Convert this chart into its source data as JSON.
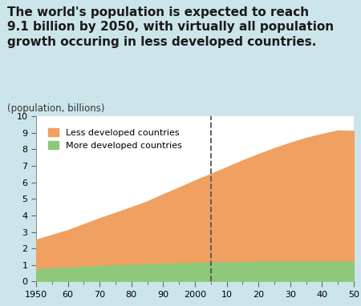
{
  "title": "The world's population is expected to reach\n9.1 billion by 2050, with virtually all population\ngrowth occuring in less developed countries.",
  "ylabel": "(population, billions)",
  "background_color": "#cce5ea",
  "plot_bg_color": "#ffffff",
  "less_dev_color": "#f0a060",
  "more_dev_color": "#8ec87a",
  "dashed_line_year": 2005,
  "years": [
    1950,
    1955,
    1960,
    1965,
    1970,
    1975,
    1980,
    1985,
    1990,
    1995,
    2000,
    2005,
    2010,
    2015,
    2020,
    2025,
    2030,
    2035,
    2040,
    2045,
    2050
  ],
  "less_dev": [
    1.72,
    1.95,
    2.19,
    2.5,
    2.82,
    3.11,
    3.42,
    3.74,
    4.14,
    4.52,
    4.93,
    5.3,
    5.69,
    6.08,
    6.45,
    6.8,
    7.12,
    7.41,
    7.65,
    7.86,
    7.83
  ],
  "more_dev": [
    0.81,
    0.87,
    0.92,
    0.97,
    1.01,
    1.05,
    1.08,
    1.11,
    1.14,
    1.17,
    1.19,
    1.21,
    1.23,
    1.25,
    1.26,
    1.27,
    1.28,
    1.28,
    1.28,
    1.28,
    1.28
  ],
  "xlim_left": 1950,
  "xlim_right": 2050,
  "ylim_bottom": 0,
  "ylim_top": 10,
  "xtick_labels": [
    "1950",
    "60",
    "70",
    "80",
    "90",
    "2000",
    "10",
    "20",
    "30",
    "40",
    "50"
  ],
  "xtick_positions": [
    1950,
    1960,
    1970,
    1980,
    1990,
    2000,
    2010,
    2020,
    2030,
    2040,
    2050
  ],
  "legend_less": "Less developed countries",
  "legend_more": "More developed countries",
  "title_fontsize": 11,
  "axis_label_fontsize": 8.5,
  "tick_fontsize": 8
}
